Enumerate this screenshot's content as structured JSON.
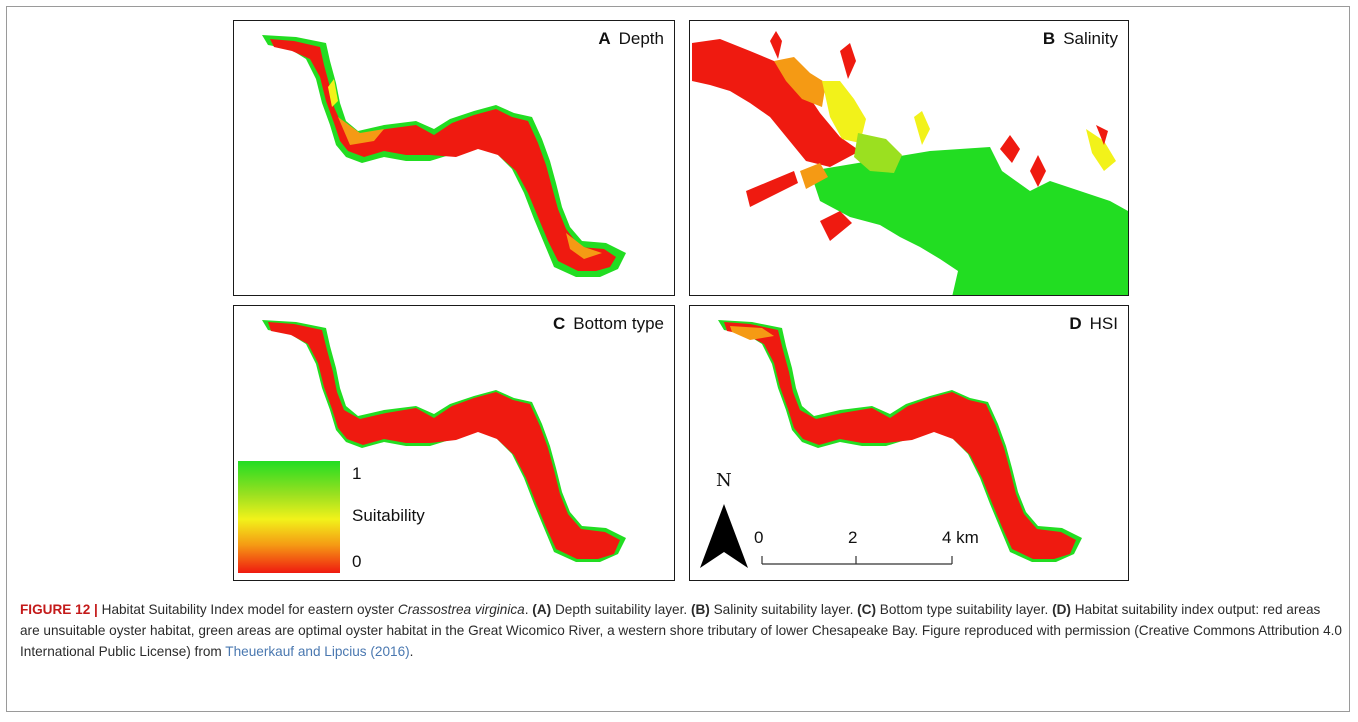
{
  "panels": {
    "a": {
      "letter": "A",
      "title": "Depth"
    },
    "b": {
      "letter": "B",
      "title": "Salinity"
    },
    "c": {
      "letter": "C",
      "title": "Bottom type"
    },
    "d": {
      "letter": "D",
      "title": "HSI"
    }
  },
  "legend": {
    "max": "1",
    "label": "Suitability",
    "min": "0"
  },
  "north_arrow": {
    "label": "N"
  },
  "scale_bar": {
    "ticks": [
      "0",
      "2",
      "4 km"
    ]
  },
  "colors": {
    "unsuitable": "#ef1a10",
    "optimal": "#22dd22",
    "intermediate": "#f2f21a"
  },
  "caption": {
    "label": "FIGURE 12 |",
    "intro": " Habitat Suitability Index model for eastern oyster ",
    "species": "Crassostrea virginica",
    "after_species": ". ",
    "ref_a": "(A)",
    "text_a": " Depth suitability layer. ",
    "ref_b": "(B)",
    "text_b": " Salinity suitability layer. ",
    "ref_c": "(C)",
    "text_c": " Bottom type suitability layer. ",
    "ref_d": "(D)",
    "text_d": " Habitat suitability index output: red areas are unsuitable oyster habitat, green areas are optimal oyster habitat in the Great Wicomico River, a western shore tributary of lower Chesapeake Bay. Figure reproduced with permission (Creative Commons Attribution 4.0 International Public License) from ",
    "citation": "Theuerkauf and Lipcius (2016)",
    "end": "."
  }
}
